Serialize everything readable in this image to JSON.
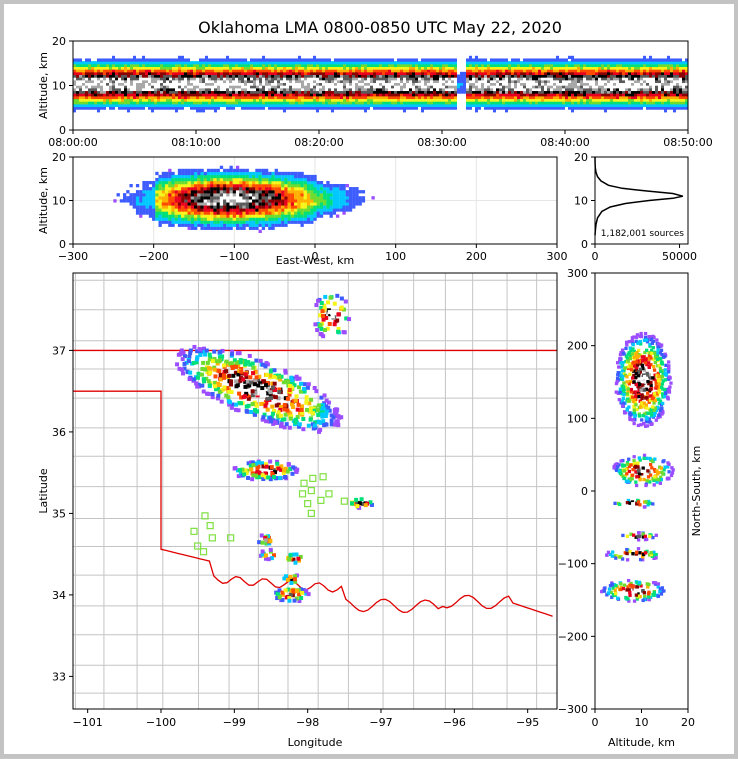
{
  "title": "Oklahoma LMA 0800-0850 UTC May 22, 2020",
  "colors": {
    "density_scale": [
      "#9b4dff",
      "#3d5cff",
      "#00c8ff",
      "#00e07a",
      "#6ddc2e",
      "#f5f51a",
      "#ffb000",
      "#ff4a00",
      "#e8001e",
      "#8b0000",
      "#000000",
      "#5a5a5a",
      "#a8a8a8",
      "#ffffff"
    ],
    "state_border": "#e00000",
    "county_lines": "#c4c4c4",
    "station_marker": "#7fe040"
  },
  "chart_data": [
    {
      "id": "time_altitude",
      "type": "heatmap",
      "xlabel": "",
      "ylabel": "Altitude, km",
      "xlim": [
        "08:00:00",
        "08:50:00"
      ],
      "ylim": [
        0,
        20
      ],
      "x_ticks": [
        "08:00:00",
        "08:10:00",
        "08:20:00",
        "08:30:00",
        "08:40:00",
        "08:50:00"
      ],
      "y_ticks": [
        0,
        10,
        20
      ],
      "core_altitude_km": 10,
      "gap_time": "08:31:30"
    },
    {
      "id": "eastwest_altitude",
      "type": "heatmap",
      "xlabel": "East-West, km",
      "ylabel": "Altitude, km",
      "xlim": [
        -300,
        300
      ],
      "ylim": [
        0,
        20
      ],
      "x_ticks": [
        -300,
        -200,
        -100,
        0,
        100,
        200,
        300
      ],
      "y_ticks": [
        0,
        10,
        20
      ],
      "grid": true
    },
    {
      "id": "altitude_histogram",
      "type": "line",
      "xlim": [
        0,
        55000
      ],
      "ylim": [
        0,
        20
      ],
      "x_ticks": [
        0,
        50000
      ],
      "y_ticks": [
        0,
        10,
        20
      ],
      "annotation": "1,182,001 sources",
      "x": [
        0,
        200,
        600,
        1500,
        4000,
        9000,
        18000,
        32000,
        46000,
        52000,
        46000,
        30000,
        16000,
        8000,
        3500,
        1500,
        600,
        200,
        50,
        0
      ],
      "y": [
        2.0,
        3.0,
        4.5,
        6.0,
        7.5,
        8.5,
        9.3,
        10.0,
        10.5,
        11.0,
        11.6,
        12.2,
        12.8,
        13.5,
        14.5,
        15.5,
        16.5,
        17.5,
        18.5,
        20.0
      ]
    },
    {
      "id": "plan_view",
      "type": "heatmap",
      "xlabel": "Longitude",
      "ylabel": "Latitude",
      "xlim": [
        -101.2,
        -94.6
      ],
      "ylim": [
        32.6,
        37.95
      ],
      "x_ticks": [
        -101,
        -100,
        -99,
        -98,
        -97,
        -96,
        -95
      ],
      "y_ticks": [
        33,
        34,
        35,
        36,
        37
      ],
      "stations": [
        [
          -99.4,
          34.97
        ],
        [
          -99.33,
          34.85
        ],
        [
          -99.55,
          34.78
        ],
        [
          -99.3,
          34.7
        ],
        [
          -99.05,
          34.7
        ],
        [
          -99.5,
          34.6
        ],
        [
          -99.42,
          34.53
        ],
        [
          -97.93,
          35.43
        ],
        [
          -97.79,
          35.45
        ],
        [
          -98.05,
          35.37
        ],
        [
          -97.95,
          35.28
        ],
        [
          -98.07,
          35.24
        ],
        [
          -97.71,
          35.24
        ],
        [
          -97.82,
          35.16
        ],
        [
          -97.5,
          35.15
        ],
        [
          -98.0,
          35.12
        ],
        [
          -97.95,
          35.0
        ]
      ]
    },
    {
      "id": "altitude_northsouth",
      "type": "heatmap",
      "xlabel": "Altitude, km",
      "ylabel": "North-South, km",
      "xlim": [
        0,
        20
      ],
      "ylim": [
        -300,
        300
      ],
      "x_ticks": [
        0,
        10,
        20
      ],
      "y_ticks": [
        -300,
        -200,
        -100,
        0,
        100,
        200,
        300
      ]
    }
  ]
}
